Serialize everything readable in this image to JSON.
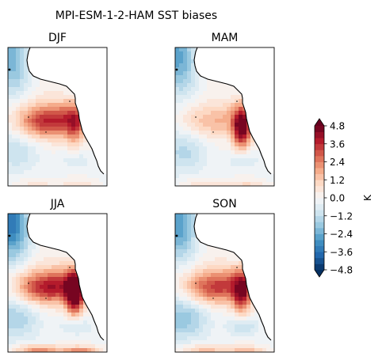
{
  "chart_data": {
    "type": "heatmap",
    "title": "MPI-ESM-1-2-HAM SST biases",
    "panels": [
      {
        "title": "DJF",
        "warm_core": 2.6,
        "coastal_warm": 1.8,
        "northwest_cold": -2.4,
        "south_cold": -1.0,
        "south_warm_patches": 0.6
      },
      {
        "title": "MAM",
        "warm_core": 1.2,
        "coastal_warm": 4.6,
        "northwest_cold": -2.6,
        "south_cold": -1.2,
        "south_warm_patches": 0.8
      },
      {
        "title": "JJA",
        "warm_core": 2.8,
        "coastal_warm": 4.8,
        "northwest_cold": -3.6,
        "south_cold": -1.4,
        "south_warm_patches": 2.4
      },
      {
        "title": "SON",
        "warm_core": 2.4,
        "coastal_warm": 3.2,
        "northwest_cold": -2.8,
        "south_cold": -1.8,
        "south_warm_patches": 1.6
      }
    ],
    "colorbar": {
      "label": "K",
      "min": -4.8,
      "max": 4.8,
      "step": 0.4,
      "ticks": [
        "4.8",
        "3.6",
        "2.4",
        "1.2",
        "0.0",
        "−1.2",
        "−2.4",
        "−3.6",
        "−4.8"
      ],
      "extend": "both",
      "colormap": "RdBu_r"
    },
    "colors": {
      "coast": "#000000",
      "land": "#ffffff",
      "frame": "#000000"
    }
  }
}
